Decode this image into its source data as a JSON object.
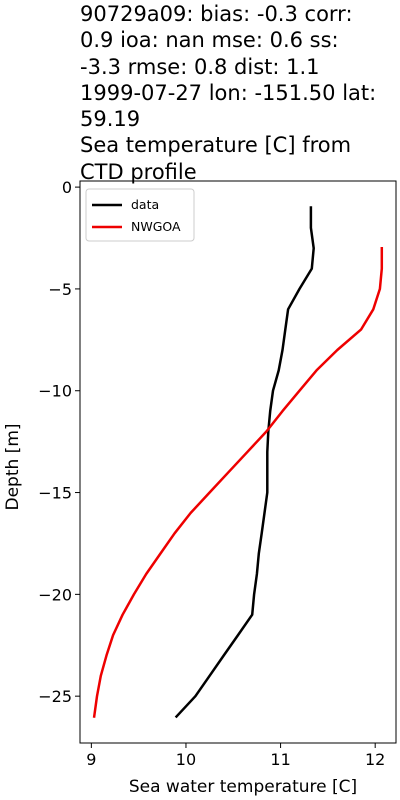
{
  "chart_data": {
    "type": "line",
    "title_lines": [
      "90729a09: bias: -0.3  corr:",
      "0.9  ioa: nan  mse: 0.6  ss:",
      "-3.3  rmse: 0.8  dist: 1.1",
      "1999-07-27 lon: -151.50 lat:",
      "59.19",
      "Sea temperature [C] from",
      "CTD profile"
    ],
    "xlabel": "Sea water temperature [C]",
    "ylabel": "Depth [m]",
    "xlim": [
      8.88,
      12.22
    ],
    "ylim": [
      -27.3,
      0.3
    ],
    "xticks": [
      9,
      10,
      11,
      12
    ],
    "yticks": [
      0,
      -5,
      -10,
      -15,
      -20,
      -25
    ],
    "legend_position": "upper-left",
    "series": [
      {
        "name": "data",
        "color": "#000000",
        "points": [
          [
            11.32,
            -1
          ],
          [
            11.32,
            -2
          ],
          [
            11.35,
            -3
          ],
          [
            11.33,
            -4
          ],
          [
            11.2,
            -5
          ],
          [
            11.08,
            -6
          ],
          [
            11.05,
            -7
          ],
          [
            11.02,
            -8
          ],
          [
            10.98,
            -9
          ],
          [
            10.92,
            -10
          ],
          [
            10.89,
            -11
          ],
          [
            10.87,
            -12
          ],
          [
            10.86,
            -13
          ],
          [
            10.86,
            -14
          ],
          [
            10.86,
            -15
          ],
          [
            10.83,
            -16
          ],
          [
            10.8,
            -17
          ],
          [
            10.77,
            -18
          ],
          [
            10.75,
            -19
          ],
          [
            10.72,
            -20
          ],
          [
            10.7,
            -21
          ],
          [
            10.55,
            -22
          ],
          [
            10.4,
            -23
          ],
          [
            10.25,
            -24
          ],
          [
            10.1,
            -25
          ],
          [
            9.9,
            -26
          ]
        ]
      },
      {
        "name": "NWGOA",
        "color": "#ee0000",
        "points": [
          [
            12.07,
            -3
          ],
          [
            12.07,
            -4
          ],
          [
            12.05,
            -5
          ],
          [
            11.98,
            -6
          ],
          [
            11.85,
            -7
          ],
          [
            11.6,
            -8
          ],
          [
            11.38,
            -9
          ],
          [
            11.2,
            -10
          ],
          [
            11.02,
            -11
          ],
          [
            10.85,
            -12
          ],
          [
            10.65,
            -13
          ],
          [
            10.45,
            -14
          ],
          [
            10.25,
            -15
          ],
          [
            10.05,
            -16
          ],
          [
            9.88,
            -17
          ],
          [
            9.73,
            -18
          ],
          [
            9.58,
            -19
          ],
          [
            9.45,
            -20
          ],
          [
            9.33,
            -21
          ],
          [
            9.23,
            -22
          ],
          [
            9.16,
            -23
          ],
          [
            9.1,
            -24
          ],
          [
            9.06,
            -25
          ],
          [
            9.03,
            -26
          ]
        ]
      }
    ]
  }
}
